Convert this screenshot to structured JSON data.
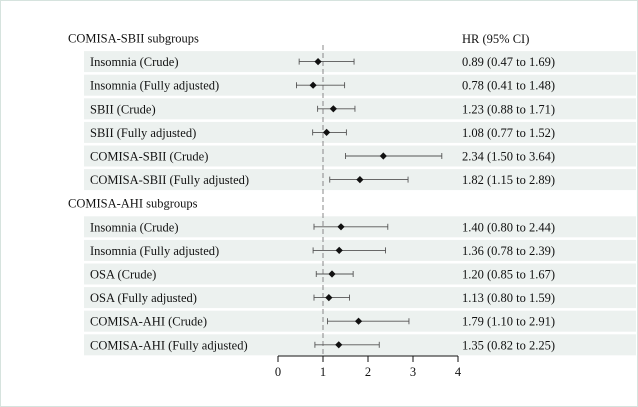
{
  "chart_data": {
    "type": "forest",
    "hr_header": "HR (95% CI)",
    "x_ticks": [
      0,
      1,
      2,
      3,
      4
    ],
    "xlim": [
      0,
      4
    ],
    "reference_line": 1,
    "groups": [
      {
        "title": "COMISA-SBII subgroups",
        "rows": [
          {
            "label": "Insomnia (Crude)",
            "hr": 0.89,
            "lo": 0.47,
            "hi": 1.69,
            "ci_text": "0.89 (0.47 to 1.69)"
          },
          {
            "label": "Insomnia (Fully adjusted)",
            "hr": 0.78,
            "lo": 0.41,
            "hi": 1.48,
            "ci_text": "0.78 (0.41 to 1.48)"
          },
          {
            "label": "SBII (Crude)",
            "hr": 1.23,
            "lo": 0.88,
            "hi": 1.71,
            "ci_text": "1.23 (0.88 to 1.71)"
          },
          {
            "label": "SBII (Fully adjusted)",
            "hr": 1.08,
            "lo": 0.77,
            "hi": 1.52,
            "ci_text": "1.08 (0.77 to 1.52)"
          },
          {
            "label": "COMISA-SBII (Crude)",
            "hr": 2.34,
            "lo": 1.5,
            "hi": 3.64,
            "ci_text": "2.34 (1.50 to 3.64)"
          },
          {
            "label": "COMISA-SBII (Fully adjusted)",
            "hr": 1.82,
            "lo": 1.15,
            "hi": 2.89,
            "ci_text": "1.82 (1.15 to 2.89)"
          }
        ]
      },
      {
        "title": "COMISA-AHI subgroups",
        "rows": [
          {
            "label": "Insomnia (Crude)",
            "hr": 1.4,
            "lo": 0.8,
            "hi": 2.44,
            "ci_text": "1.40 (0.80 to 2.44)"
          },
          {
            "label": "Insomnia (Fully adjusted)",
            "hr": 1.36,
            "lo": 0.78,
            "hi": 2.39,
            "ci_text": "1.36 (0.78 to 2.39)"
          },
          {
            "label": "OSA (Crude)",
            "hr": 1.2,
            "lo": 0.85,
            "hi": 1.67,
            "ci_text": "1.20 (0.85 to 1.67)"
          },
          {
            "label": "OSA (Fully adjusted)",
            "hr": 1.13,
            "lo": 0.8,
            "hi": 1.59,
            "ci_text": "1.13 (0.80 to 1.59)"
          },
          {
            "label": "COMISA-AHI (Crude)",
            "hr": 1.79,
            "lo": 1.1,
            "hi": 2.91,
            "ci_text": "1.79 (1.10 to 2.91)"
          },
          {
            "label": "COMISA-AHI (Fully adjusted)",
            "hr": 1.35,
            "lo": 0.82,
            "hi": 2.25,
            "ci_text": "1.35 (0.82 to 2.25)"
          }
        ]
      }
    ],
    "colors": {
      "row_band": "#ecf1ef",
      "frame": "#d6e3de",
      "reference_line": "#888888",
      "marker": "#111111",
      "ci_line": "#555555",
      "text": "#111111"
    }
  }
}
